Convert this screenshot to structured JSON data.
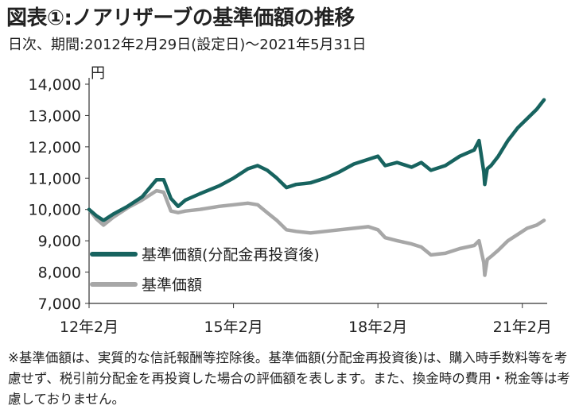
{
  "title": "図表①:ノアリザーブの基準価額の推移",
  "subtitle": "日次、期間:2012年2月29日(設定日)〜2021年5月31日",
  "note": "※基準価額は、実質的な信託報酬等控除後。基準価額(分配金再投資後)は、購入時手数料等を考慮せず、税引前分配金を再投資した場合の評価額を表します。また、換金時の費用・税金等は考慮しておりません。",
  "colors": {
    "reinvested": "#17635f",
    "nav": "#a7a7a7",
    "axis": "#333333"
  },
  "chart_data": {
    "type": "line",
    "ylabel": "円",
    "ylim": [
      7000,
      14000
    ],
    "yticks": [
      7000,
      8000,
      9000,
      10000,
      11000,
      12000,
      13000,
      14000
    ],
    "ytick_labels": [
      "7,000",
      "8,000",
      "9,000",
      "10,000",
      "11,000",
      "12,000",
      "13,000",
      "14,000"
    ],
    "xlim": [
      2012.0,
      2021.45
    ],
    "xticks": [
      2012,
      2015,
      2018,
      2021
    ],
    "xtick_labels": [
      "12年2月",
      "15年2月",
      "18年2月",
      "21年2月"
    ],
    "grid": false,
    "legend_position": "bottom-left",
    "series": [
      {
        "name": "基準価額(分配金再投資後)",
        "color": "#17635f",
        "x": [
          2012.0,
          2012.15,
          2012.3,
          2012.5,
          2012.8,
          2013.1,
          2013.4,
          2013.55,
          2013.7,
          2013.85,
          2014.0,
          2014.3,
          2014.7,
          2015.0,
          2015.3,
          2015.5,
          2015.7,
          2015.9,
          2016.1,
          2016.3,
          2016.6,
          2016.9,
          2017.2,
          2017.5,
          2017.8,
          2018.0,
          2018.15,
          2018.4,
          2018.7,
          2018.9,
          2019.1,
          2019.4,
          2019.7,
          2020.0,
          2020.1,
          2020.2,
          2020.22,
          2020.27,
          2020.35,
          2020.5,
          2020.7,
          2020.9,
          2021.1,
          2021.3,
          2021.45
        ],
        "values": [
          10000,
          9800,
          9650,
          9850,
          10100,
          10400,
          10950,
          10950,
          10350,
          10100,
          10300,
          10500,
          10750,
          11000,
          11300,
          11400,
          11250,
          11000,
          10700,
          10800,
          10850,
          11000,
          11200,
          11450,
          11600,
          11700,
          11400,
          11500,
          11350,
          11500,
          11250,
          11400,
          11700,
          11900,
          12200,
          11200,
          10800,
          11300,
          11400,
          11700,
          12200,
          12600,
          12900,
          13200,
          13500
        ]
      },
      {
        "name": "基準価額",
        "color": "#a7a7a7",
        "x": [
          2012.0,
          2012.15,
          2012.3,
          2012.5,
          2012.8,
          2013.1,
          2013.4,
          2013.55,
          2013.7,
          2013.85,
          2014.0,
          2014.3,
          2014.7,
          2015.0,
          2015.3,
          2015.5,
          2015.7,
          2015.9,
          2016.1,
          2016.3,
          2016.6,
          2016.9,
          2017.2,
          2017.5,
          2017.8,
          2018.0,
          2018.15,
          2018.4,
          2018.7,
          2018.9,
          2019.1,
          2019.4,
          2019.7,
          2020.0,
          2020.1,
          2020.2,
          2020.22,
          2020.27,
          2020.35,
          2020.5,
          2020.7,
          2020.9,
          2021.1,
          2021.3,
          2021.45
        ],
        "values": [
          10000,
          9700,
          9500,
          9750,
          10050,
          10300,
          10600,
          10550,
          9950,
          9900,
          9950,
          10000,
          10100,
          10150,
          10200,
          10150,
          9900,
          9650,
          9350,
          9300,
          9250,
          9300,
          9350,
          9400,
          9450,
          9350,
          9100,
          9000,
          8900,
          8800,
          8550,
          8600,
          8750,
          8850,
          9000,
          8300,
          7900,
          8400,
          8500,
          8700,
          9000,
          9200,
          9400,
          9500,
          9650
        ]
      }
    ]
  }
}
